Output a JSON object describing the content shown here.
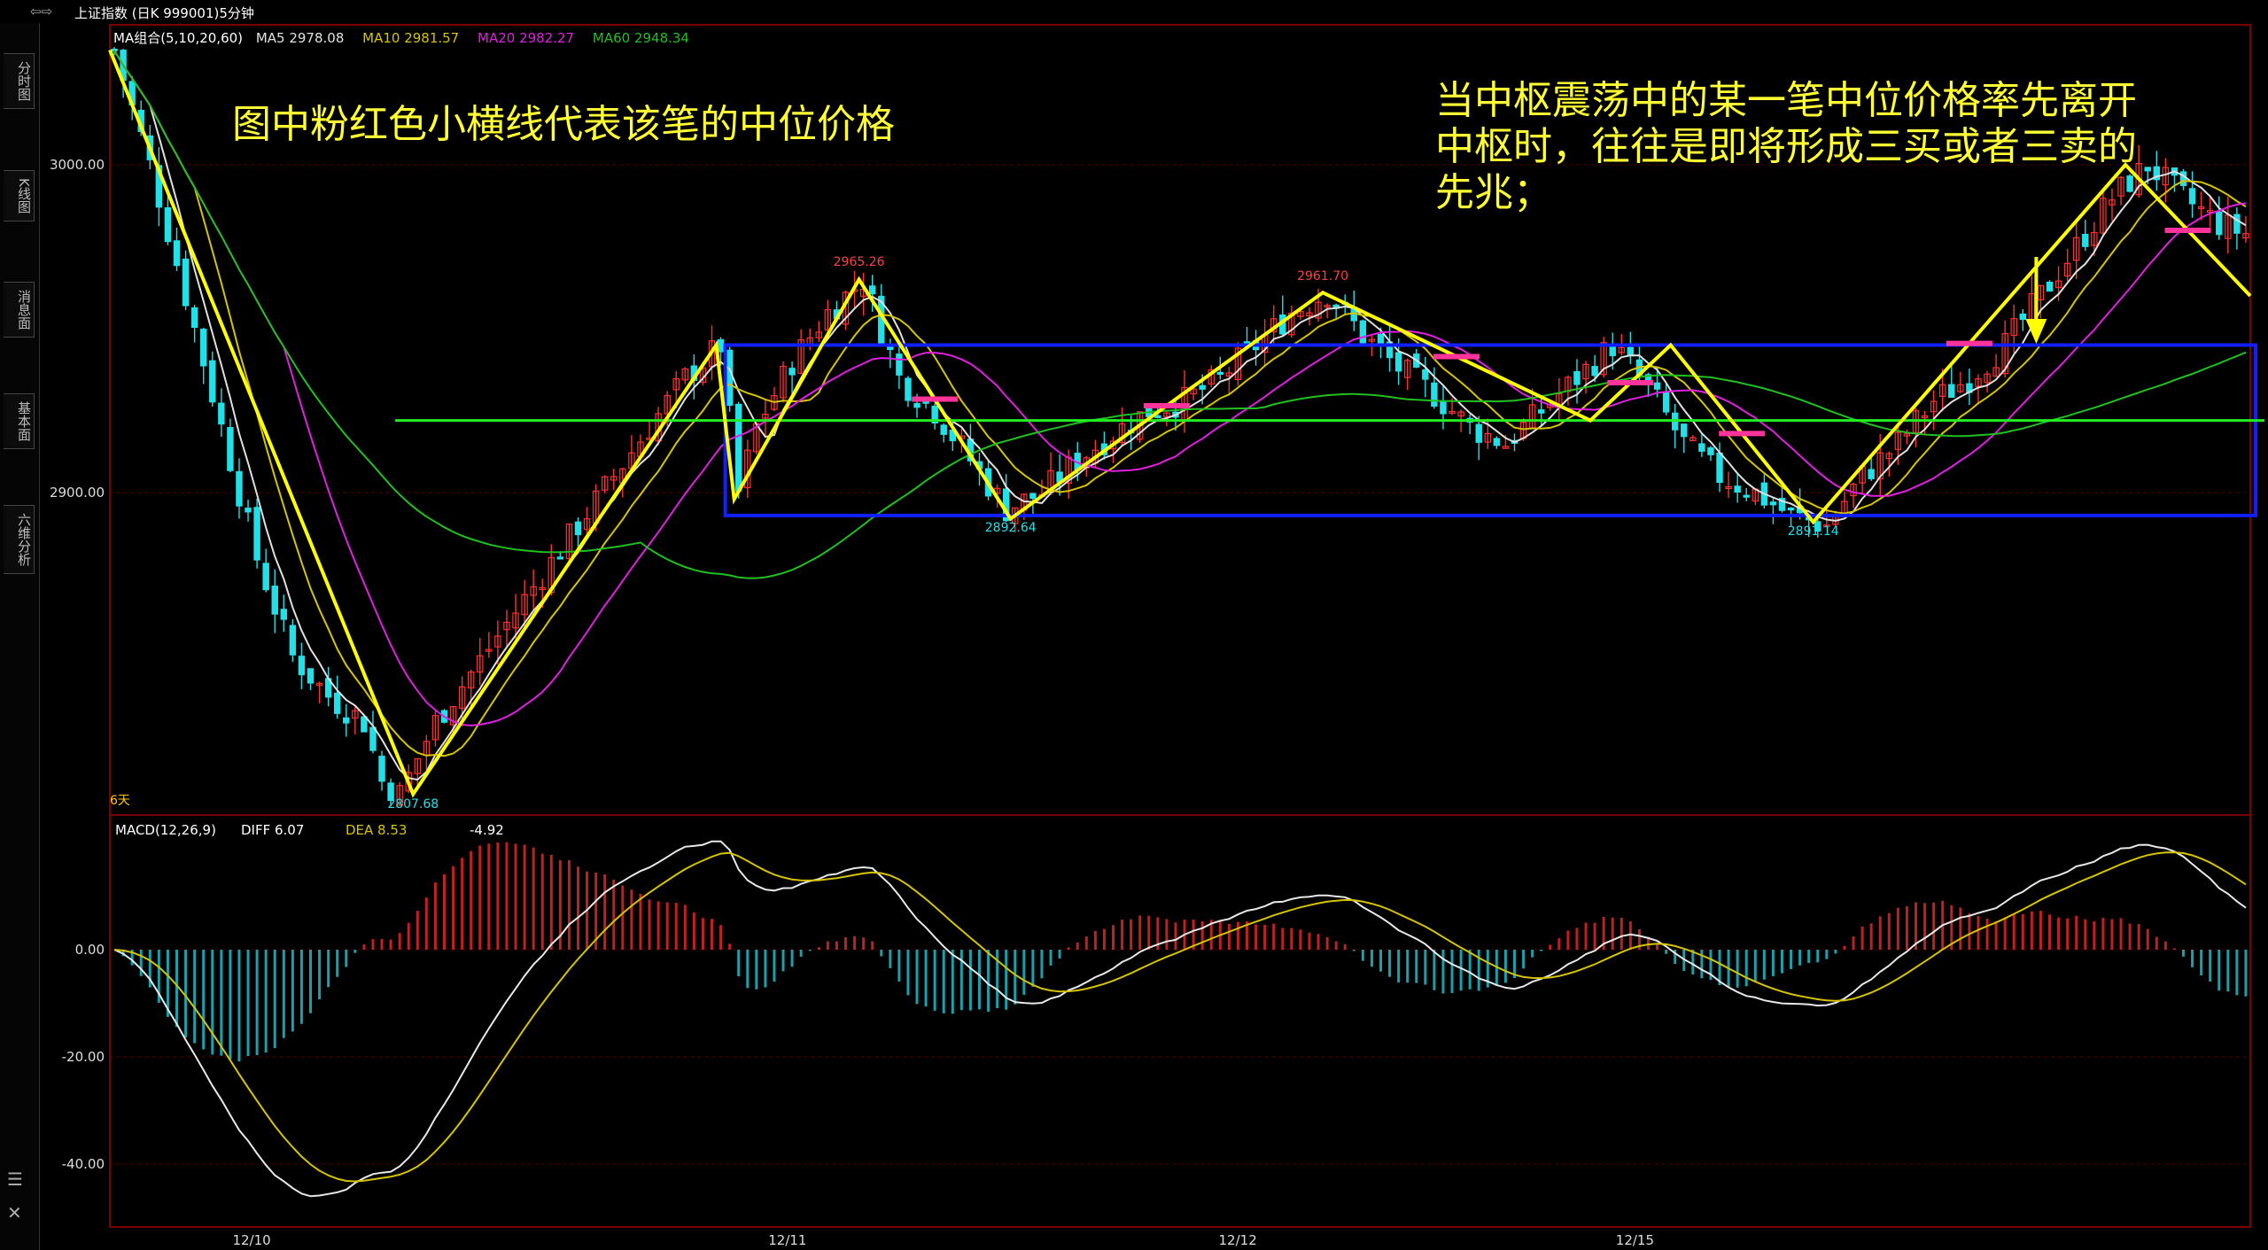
{
  "header": {
    "nav_arrows": "⇦⇨",
    "title": "上证指数 (日K 999001)5分钟",
    "ma_group": "MA组合(5,10,20,60)",
    "ma5": "MA5 2978.08",
    "ma10": "MA10 2981.57",
    "ma20": "MA20 2982.27",
    "ma60": "MA60 2948.34"
  },
  "sidebar": {
    "tabs": [
      "分时图",
      "K线图",
      "消息面",
      "基本面",
      "六维分析"
    ]
  },
  "annotations": {
    "left_note": "图中粉红色小横线代表该笔的中位价格",
    "right_note_lines": [
      "当中枢震荡中的某一笔中位价格率先离开",
      "中枢时，往往是即将形成三买或者三卖的",
      "先兆；"
    ]
  },
  "price_panel": {
    "y_ticks": [
      "3000.00",
      "2900.00"
    ],
    "extreme_labels": [
      "2965.26",
      "2961.70",
      "2892.64",
      "2891.14",
      "2807.68"
    ],
    "days_label": "6天"
  },
  "macd_panel": {
    "title": "MACD(12,26,9)",
    "diff": "DIFF  6.07",
    "dea": "DEA  8.53",
    "macd": "-4.92",
    "y_ticks": [
      "0.00",
      "-20.00",
      "-40.00"
    ]
  },
  "x_axis": {
    "labels": [
      "12/10",
      "12/11",
      "12/12",
      "12/15"
    ]
  },
  "colors": {
    "up": "#ff3030",
    "down": "#22e0e8",
    "bi": "#ffff00",
    "box": "#1020ff",
    "center": "#22ee22",
    "mid": "#ff3399",
    "ma5": "#e0e0e0",
    "ma10": "#d6c400",
    "ma20": "#e020e0",
    "ma60": "#20c020"
  },
  "chart_data": {
    "type": "candlestick",
    "title": "上证指数 5分钟",
    "series_ohlc_hint": "approximate path of 5-minute bars",
    "close_path": [
      [
        0,
        3035
      ],
      [
        4,
        3000
      ],
      [
        8,
        2960
      ],
      [
        12,
        2920
      ],
      [
        16,
        2880
      ],
      [
        20,
        2850
      ],
      [
        24,
        2838
      ],
      [
        28,
        2830
      ],
      [
        30,
        2812
      ],
      [
        32,
        2808
      ],
      [
        36,
        2830
      ],
      [
        40,
        2845
      ],
      [
        44,
        2860
      ],
      [
        48,
        2875
      ],
      [
        52,
        2890
      ],
      [
        56,
        2905
      ],
      [
        60,
        2920
      ],
      [
        64,
        2935
      ],
      [
        68,
        2945
      ],
      [
        70,
        2900
      ],
      [
        72,
        2920
      ],
      [
        76,
        2940
      ],
      [
        80,
        2955
      ],
      [
        84,
        2965
      ],
      [
        88,
        2935
      ],
      [
        92,
        2925
      ],
      [
        96,
        2910
      ],
      [
        100,
        2895
      ],
      [
        104,
        2900
      ],
      [
        108,
        2910
      ],
      [
        112,
        2918
      ],
      [
        116,
        2925
      ],
      [
        120,
        2928
      ],
      [
        124,
        2935
      ],
      [
        128,
        2945
      ],
      [
        132,
        2955
      ],
      [
        136,
        2961
      ],
      [
        140,
        2948
      ],
      [
        144,
        2938
      ],
      [
        148,
        2930
      ],
      [
        152,
        2920
      ],
      [
        156,
        2915
      ],
      [
        160,
        2925
      ],
      [
        164,
        2935
      ],
      [
        168,
        2945
      ],
      [
        172,
        2932
      ],
      [
        176,
        2915
      ],
      [
        180,
        2905
      ],
      [
        184,
        2900
      ],
      [
        188,
        2893
      ],
      [
        192,
        2890
      ],
      [
        196,
        2905
      ],
      [
        200,
        2915
      ],
      [
        204,
        2928
      ],
      [
        208,
        2935
      ],
      [
        212,
        2945
      ],
      [
        216,
        2960
      ],
      [
        220,
        2975
      ],
      [
        224,
        2990
      ],
      [
        228,
        3000
      ],
      [
        232,
        2990
      ],
      [
        236,
        2982
      ],
      [
        240,
        2978
      ]
    ],
    "bi_segments": [
      [
        0,
        3035
      ],
      [
        34,
        2808
      ],
      [
        68,
        2945
      ],
      [
        70,
        2898
      ],
      [
        84,
        2965
      ],
      [
        101,
        2892
      ],
      [
        136,
        2961
      ],
      [
        166,
        2922
      ],
      [
        175,
        2945
      ],
      [
        191,
        2891
      ],
      [
        226,
        3000
      ],
      [
        240,
        2960
      ]
    ],
    "pivot_box": {
      "upper": 2945,
      "lower": 2893,
      "center": 2922
    },
    "macd": {
      "diff": 6.07,
      "dea": 8.53,
      "macd": -4.92
    }
  }
}
